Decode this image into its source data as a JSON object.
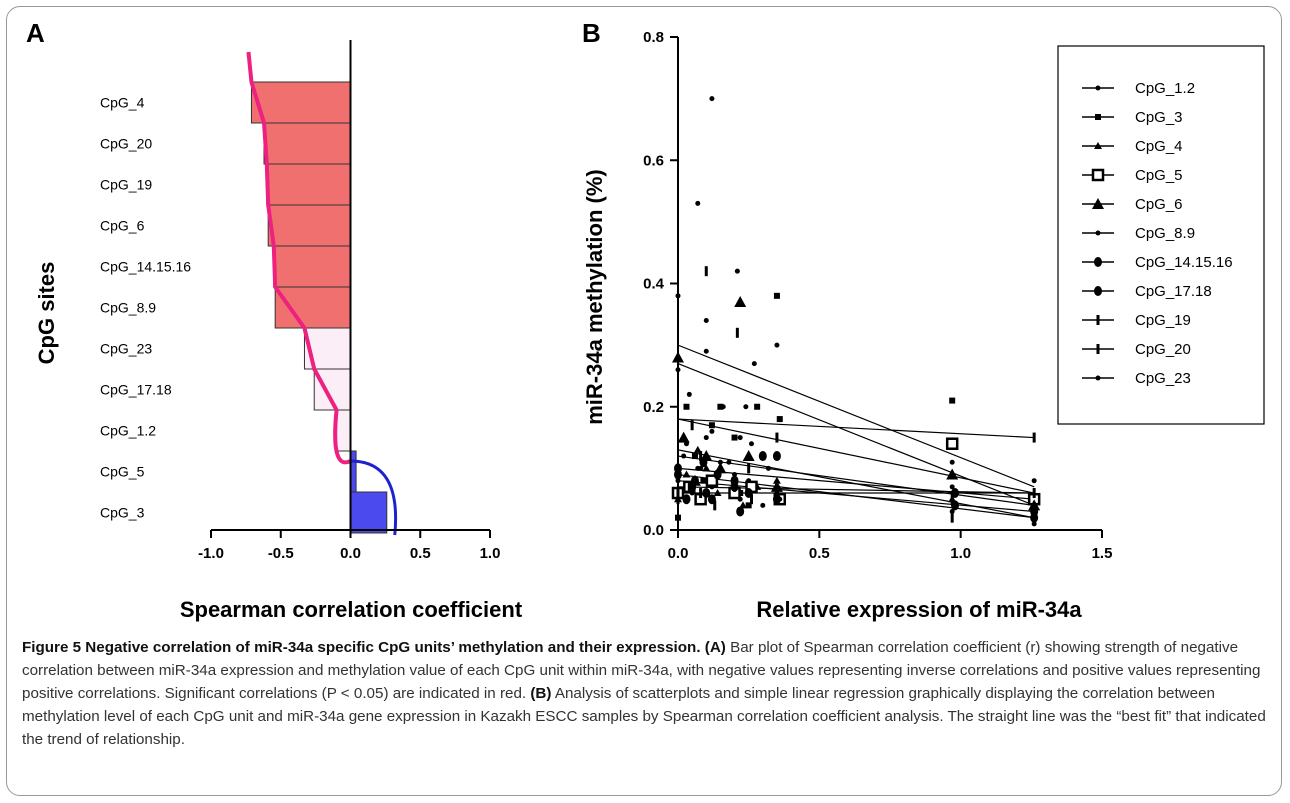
{
  "caption": {
    "title": "Figure 5 Negative correlation of miR-34a specific CpG units’ methylation and their expression.",
    "a_marker": "(A)",
    "a_text": "Bar plot of Spearman correlation coefficient (r) showing strength of negative correlation between miR-34a expression and methylation value of each CpG unit within miR-34a, with negative values representing inverse correlations and positive values representing positive correlations. Significant correlations (P < 0.05) are indicated in red.",
    "b_marker": "(B)",
    "b_text": "Analysis of scatterplots and simple linear regression graphically displaying the correlation between methylation level of each CpG unit and miR-34a gene expression in Kazakh ESCC samples by Spearman correlation coefficient analysis. The straight line was the “best fit” that indicated the trend of relationship."
  },
  "chart_data": [
    {
      "panel": "A",
      "type": "bar",
      "orientation": "horizontal",
      "ylabel": "CpG sites",
      "xlabel": "Spearman correlation coefficient",
      "xlim": [
        -1.0,
        1.0
      ],
      "xticks": [
        "-1.0",
        "-0.5",
        "0.0",
        "0.5",
        "1.0"
      ],
      "categories": [
        "CpG_4",
        "CpG_20",
        "CpG_19",
        "CpG_6",
        "CpG_14.15.16",
        "CpG_8.9",
        "CpG_23",
        "CpG_17.18",
        "CpG_1.2",
        "CpG_5",
        "CpG_3"
      ],
      "values": [
        -0.71,
        -0.62,
        -0.6,
        -0.59,
        -0.55,
        -0.54,
        -0.33,
        -0.26,
        -0.1,
        0.04,
        0.26
      ],
      "significant": [
        true,
        true,
        true,
        true,
        true,
        true,
        false,
        false,
        false,
        false,
        false
      ],
      "colors": {
        "significant": "#f07070",
        "nonsignificant_negative": "#fbeef6",
        "positive": "#4a4aee",
        "negative_curve": "#ee2080",
        "positive_curve": "#1e22cc"
      }
    },
    {
      "panel": "B",
      "type": "scatter",
      "xlabel": "Relative expression of miR-34a",
      "ylabel": "miR-34a methylation (%)",
      "xlim": [
        0.0,
        1.5
      ],
      "ylim": [
        0.0,
        0.8
      ],
      "xticks": [
        "0.0",
        "0.5",
        "1.0",
        "1.5"
      ],
      "yticks": [
        "0.0",
        "0.2",
        "0.4",
        "0.6",
        "0.8"
      ],
      "legend_position": "right",
      "series": [
        {
          "name": "CpG_1.2",
          "marker": "circle-small",
          "fit": [
            [
              0.0,
              0.12
            ],
            [
              1.26,
              0.04
            ]
          ],
          "points": [
            [
              0.0,
              0.08
            ],
            [
              0.02,
              0.12
            ],
            [
              0.05,
              0.06
            ],
            [
              0.08,
              0.1
            ],
            [
              0.1,
              0.15
            ],
            [
              0.12,
              0.07
            ],
            [
              0.15,
              0.11
            ],
            [
              0.2,
              0.09
            ],
            [
              0.22,
              0.05
            ],
            [
              0.25,
              0.08
            ],
            [
              0.3,
              0.04
            ],
            [
              0.35,
              0.06
            ],
            [
              0.97,
              0.03
            ],
            [
              1.26,
              0.04
            ]
          ]
        },
        {
          "name": "CpG_3",
          "marker": "square-small",
          "fit": [
            [
              0.0,
              0.18
            ],
            [
              1.26,
              0.06
            ]
          ],
          "points": [
            [
              0.0,
              0.02
            ],
            [
              0.03,
              0.2
            ],
            [
              0.06,
              0.12
            ],
            [
              0.09,
              0.08
            ],
            [
              0.12,
              0.17
            ],
            [
              0.15,
              0.2
            ],
            [
              0.2,
              0.15
            ],
            [
              0.22,
              0.06
            ],
            [
              0.25,
              0.04
            ],
            [
              0.28,
              0.2
            ],
            [
              0.35,
              0.38
            ],
            [
              0.36,
              0.18
            ],
            [
              0.97,
              0.21
            ],
            [
              1.26,
              0.05
            ]
          ]
        },
        {
          "name": "CpG_4",
          "marker": "triangle-small",
          "fit": [
            [
              0.0,
              0.1
            ],
            [
              1.26,
              0.05
            ]
          ],
          "points": [
            [
              0.0,
              0.05
            ],
            [
              0.03,
              0.09
            ],
            [
              0.07,
              0.13
            ],
            [
              0.1,
              0.1
            ],
            [
              0.14,
              0.06
            ],
            [
              0.2,
              0.08
            ],
            [
              0.23,
              0.04
            ],
            [
              0.28,
              0.07
            ],
            [
              0.35,
              0.08
            ],
            [
              0.97,
              0.05
            ],
            [
              1.26,
              0.05
            ]
          ]
        },
        {
          "name": "CpG_5",
          "marker": "square-open",
          "fit": [
            [
              0.0,
              0.07
            ],
            [
              1.26,
              0.06
            ]
          ],
          "points": [
            [
              0.0,
              0.06
            ],
            [
              0.04,
              0.07
            ],
            [
              0.08,
              0.05
            ],
            [
              0.12,
              0.08
            ],
            [
              0.2,
              0.06
            ],
            [
              0.26,
              0.07
            ],
            [
              0.36,
              0.05
            ],
            [
              0.97,
              0.14
            ],
            [
              1.26,
              0.05
            ]
          ]
        },
        {
          "name": "CpG_6",
          "marker": "triangle-large",
          "fit": [
            [
              0.0,
              0.27
            ],
            [
              1.26,
              0.04
            ]
          ],
          "points": [
            [
              0.0,
              0.28
            ],
            [
              0.02,
              0.15
            ],
            [
              0.06,
              0.08
            ],
            [
              0.1,
              0.12
            ],
            [
              0.15,
              0.1
            ],
            [
              0.22,
              0.37
            ],
            [
              0.25,
              0.12
            ],
            [
              0.35,
              0.07
            ],
            [
              0.97,
              0.09
            ],
            [
              1.26,
              0.04
            ]
          ]
        },
        {
          "name": "CpG_8.9",
          "marker": "circle-small",
          "fit": [
            [
              0.0,
              0.3
            ],
            [
              1.26,
              0.07
            ]
          ],
          "points": [
            [
              0.0,
              0.26
            ],
            [
              0.04,
              0.22
            ],
            [
              0.07,
              0.53
            ],
            [
              0.1,
              0.29
            ],
            [
              0.12,
              0.7
            ],
            [
              0.16,
              0.2
            ],
            [
              0.21,
              0.42
            ],
            [
              0.24,
              0.2
            ],
            [
              0.27,
              0.27
            ],
            [
              0.35,
              0.3
            ],
            [
              0.97,
              0.11
            ],
            [
              1.26,
              0.08
            ]
          ]
        },
        {
          "name": "CpG_14.15.16",
          "marker": "circle-large",
          "fit": [
            [
              0.0,
              0.09
            ],
            [
              1.26,
              0.02
            ]
          ],
          "points": [
            [
              0.0,
              0.1
            ],
            [
              0.03,
              0.05
            ],
            [
              0.06,
              0.08
            ],
            [
              0.1,
              0.06
            ],
            [
              0.14,
              0.09
            ],
            [
              0.2,
              0.07
            ],
            [
              0.22,
              0.03
            ],
            [
              0.3,
              0.12
            ],
            [
              0.35,
              0.05
            ],
            [
              0.98,
              0.06
            ],
            [
              1.26,
              0.02
            ]
          ]
        },
        {
          "name": "CpG_17.18",
          "marker": "circle-large",
          "fit": [
            [
              0.0,
              0.08
            ],
            [
              1.26,
              0.03
            ]
          ],
          "points": [
            [
              0.0,
              0.09
            ],
            [
              0.05,
              0.07
            ],
            [
              0.09,
              0.11
            ],
            [
              0.12,
              0.05
            ],
            [
              0.2,
              0.08
            ],
            [
              0.25,
              0.06
            ],
            [
              0.35,
              0.12
            ],
            [
              0.98,
              0.04
            ],
            [
              1.26,
              0.03
            ]
          ]
        },
        {
          "name": "CpG_19",
          "marker": "tick",
          "fit": [
            [
              0.0,
              0.06
            ],
            [
              1.26,
              0.06
            ]
          ],
          "points": [
            [
              0.0,
              0.05
            ],
            [
              0.04,
              0.07
            ],
            [
              0.08,
              0.06
            ],
            [
              0.13,
              0.04
            ],
            [
              0.2,
              0.07
            ],
            [
              0.26,
              0.05
            ],
            [
              0.35,
              0.06
            ],
            [
              0.97,
              0.02
            ],
            [
              1.26,
              0.06
            ]
          ]
        },
        {
          "name": "CpG_20",
          "marker": "tick",
          "fit": [
            [
              0.0,
              0.18
            ],
            [
              1.26,
              0.15
            ]
          ],
          "points": [
            [
              0.0,
              0.06
            ],
            [
              0.05,
              0.17
            ],
            [
              0.08,
              0.12
            ],
            [
              0.1,
              0.42
            ],
            [
              0.14,
              0.09
            ],
            [
              0.21,
              0.32
            ],
            [
              0.25,
              0.1
            ],
            [
              0.35,
              0.15
            ],
            [
              0.97,
              0.05
            ],
            [
              1.26,
              0.15
            ]
          ]
        },
        {
          "name": "CpG_23",
          "marker": "circle-small",
          "fit": [
            [
              0.0,
              0.13
            ],
            [
              1.26,
              0.02
            ]
          ],
          "points": [
            [
              0.0,
              0.38
            ],
            [
              0.03,
              0.14
            ],
            [
              0.07,
              0.1
            ],
            [
              0.1,
              0.34
            ],
            [
              0.12,
              0.16
            ],
            [
              0.18,
              0.11
            ],
            [
              0.22,
              0.15
            ],
            [
              0.26,
              0.14
            ],
            [
              0.32,
              0.1
            ],
            [
              0.36,
              0.05
            ],
            [
              0.97,
              0.07
            ],
            [
              1.26,
              0.01
            ]
          ]
        }
      ]
    }
  ]
}
